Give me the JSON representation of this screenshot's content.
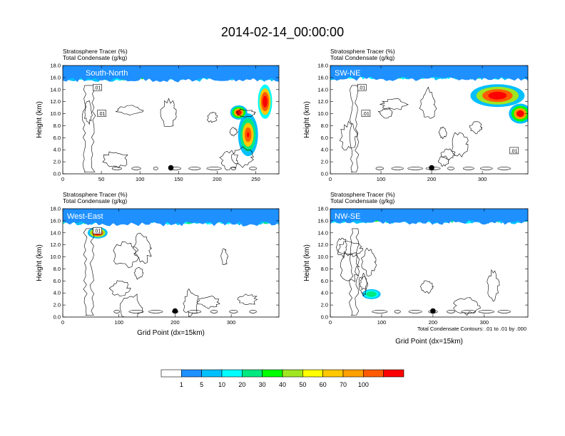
{
  "page_title": "2014-02-14_00:00:00",
  "colorbar": {
    "labels": [
      "1",
      "5",
      "10",
      "20",
      "30",
      "40",
      "50",
      "60",
      "70",
      "100"
    ],
    "colors": [
      "#ffffff",
      "#1e90ff",
      "#00bfff",
      "#00ffff",
      "#00e880",
      "#00ff00",
      "#a0e620",
      "#ffff00",
      "#ffc800",
      "#ffa000",
      "#ff5a00",
      "#ff0000"
    ]
  },
  "footer_note": "Total Condensate Contours: .01 to .01 by .000",
  "chart_data": [
    {
      "type": "heatmap",
      "panel_label": "South-North",
      "title_line1": "Stratosphere Tracer   (%)",
      "title_line2": "Total Condensate   (g/kg)",
      "ylabel": "Height (km)",
      "xlabel": "",
      "xlim": [
        0,
        280
      ],
      "ylim": [
        0,
        18
      ],
      "xticks": [
        0,
        50,
        100,
        150,
        200,
        250
      ],
      "yticks": [
        "0.0",
        "2.0",
        "4.0",
        "6.0",
        "8.0",
        "10.0",
        "12.0",
        "14.0",
        "16.0",
        "18.0"
      ],
      "contour_labels": [
        ".01",
        ".01"
      ],
      "tracer_base_km": 15.6,
      "marker_x": 140
    },
    {
      "type": "heatmap",
      "panel_label": "SW-NE",
      "title_line1": "Stratosphere Tracer   (%)",
      "title_line2": "Total Condensate   (g/kg)",
      "ylabel": "Height (km)",
      "xlabel": "",
      "xlim": [
        0,
        390
      ],
      "ylim": [
        0,
        18
      ],
      "xticks": [
        0,
        100,
        200,
        300
      ],
      "yticks": [
        "0.0",
        "2.0",
        "4.0",
        "6.0",
        "8.0",
        "10.0",
        "12.0",
        "14.0",
        "16.0",
        "18.0"
      ],
      "contour_labels": [
        ".01",
        ".01",
        ".01"
      ],
      "tracer_base_km": 15.8,
      "marker_x": 200
    },
    {
      "type": "heatmap",
      "panel_label": "West-East",
      "title_line1": "Stratosphere Tracer   (%)",
      "title_line2": "Total Condensate   (g/kg)",
      "ylabel": "Height (km)",
      "xlabel": "Grid Point (dx=15km)",
      "xlim": [
        0,
        385
      ],
      "ylim": [
        0,
        18
      ],
      "xticks": [
        0,
        100,
        200,
        300
      ],
      "yticks": [
        "0.0",
        "2.0",
        "4.0",
        "6.0",
        "8.0",
        "10.0",
        "12.0",
        "14.0",
        "16.0",
        "18.0"
      ],
      "contour_labels": [
        ".01"
      ],
      "tracer_base_km": 15.5,
      "marker_x": 200
    },
    {
      "type": "heatmap",
      "panel_label": "NW-SE",
      "title_line1": "Stratosphere Tracer   (%)",
      "title_line2": "Total Condensate   (g/kg)",
      "ylabel": "Height (km)",
      "xlabel": "Grid Point (dx=15km)",
      "xlim": [
        0,
        385
      ],
      "ylim": [
        0,
        18
      ],
      "xticks": [
        0,
        100,
        200,
        300
      ],
      "yticks": [
        "0.0",
        "2.0",
        "4.0",
        "6.0",
        "8.0",
        "10.0",
        "12.0",
        "14.0",
        "16.0",
        "18.0"
      ],
      "contour_labels": [],
      "tracer_base_km": 15.7,
      "marker_x": 200
    }
  ]
}
